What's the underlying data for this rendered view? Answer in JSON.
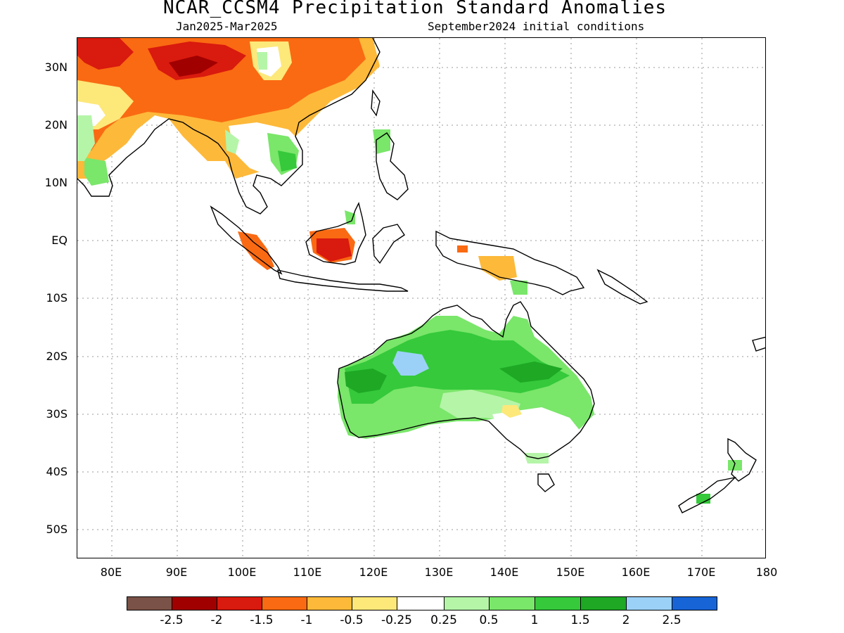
{
  "title": "NCAR_CCSM4 Precipitation Standard Anomalies",
  "period": "Jan2025-Mar2025",
  "initial_conditions": "September2024 initial conditions",
  "lat_labels": [
    "30N",
    "20N",
    "10N",
    "EQ",
    "10S",
    "20S",
    "30S",
    "40S",
    "50S"
  ],
  "lon_labels": [
    "80E",
    "90E",
    "100E",
    "110E",
    "120E",
    "130E",
    "140E",
    "150E",
    "160E",
    "170E",
    "180"
  ],
  "colorbar": {
    "colors": [
      "#7a5247",
      "#a10000",
      "#d91a0e",
      "#fa6a12",
      "#fdb93a",
      "#fde87a",
      "#ffffff",
      "#b5f5a8",
      "#7ae66a",
      "#35c93b",
      "#1ea824",
      "#9bd1f7",
      "#1764d6"
    ],
    "labels": [
      "-2.5",
      "-2",
      "-1.5",
      "-1",
      "-0.5",
      "-0.25",
      "0.25",
      "0.5",
      "1",
      "1.5",
      "2",
      "2.5"
    ]
  }
}
